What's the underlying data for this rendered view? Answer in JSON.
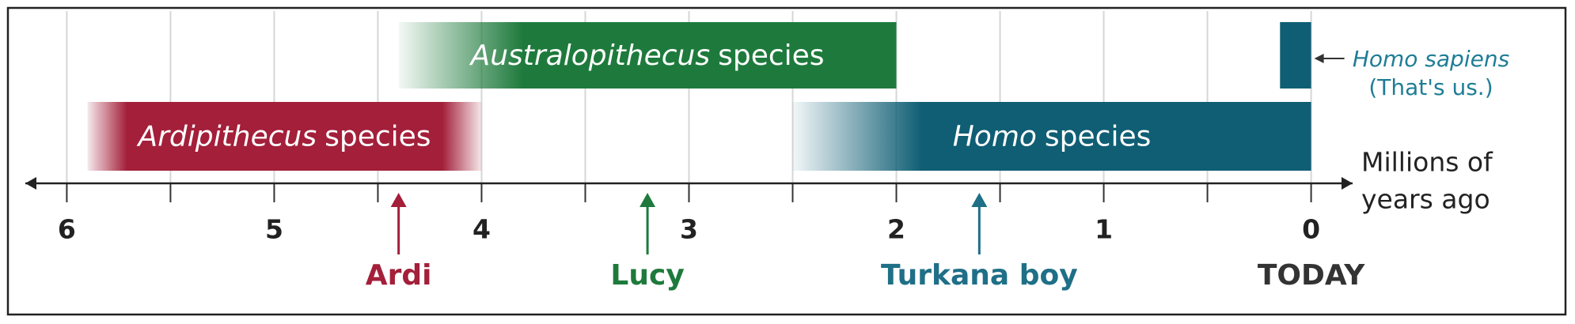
{
  "chart_data": {
    "type": "timeline",
    "axis_label": [
      "Millions of",
      "years ago"
    ],
    "xlim": [
      6.2,
      -0.2
    ],
    "xticks": [
      6,
      5,
      4,
      3,
      2,
      1,
      0
    ],
    "minor_xticks": [
      5.5,
      4.5,
      3.5,
      2.5,
      1.5,
      0.5
    ],
    "grid": true,
    "ranges": [
      {
        "name": "Australopithecus",
        "suffix": "species",
        "start": 4.4,
        "end": 2.0,
        "color": "#1e7a3c",
        "row": 0,
        "fade": "left"
      },
      {
        "name": "Ardipithecus",
        "suffix": "species",
        "start": 5.9,
        "end": 4.0,
        "color": "#a31f3a",
        "row": 1,
        "fade": "both"
      },
      {
        "name": "Homo",
        "suffix": "species",
        "start": 2.5,
        "end": 0,
        "color": "#0f5e74",
        "row": 1,
        "fade": "left"
      },
      {
        "name": "Homo sapiens",
        "note": "(That's us.)",
        "start": 0.15,
        "end": 0,
        "color": "#0f5e74",
        "row": 0,
        "fade": "none"
      }
    ],
    "markers": [
      {
        "label": "Ardi",
        "x": 4.4,
        "color": "#a31f3a"
      },
      {
        "label": "Lucy",
        "x": 3.2,
        "color": "#1e7a3c"
      },
      {
        "label": "Turkana boy",
        "x": 1.6,
        "color": "#1f6f87"
      },
      {
        "label": "TODAY",
        "x": 0,
        "color": "#333333",
        "arrow": false
      }
    ]
  }
}
